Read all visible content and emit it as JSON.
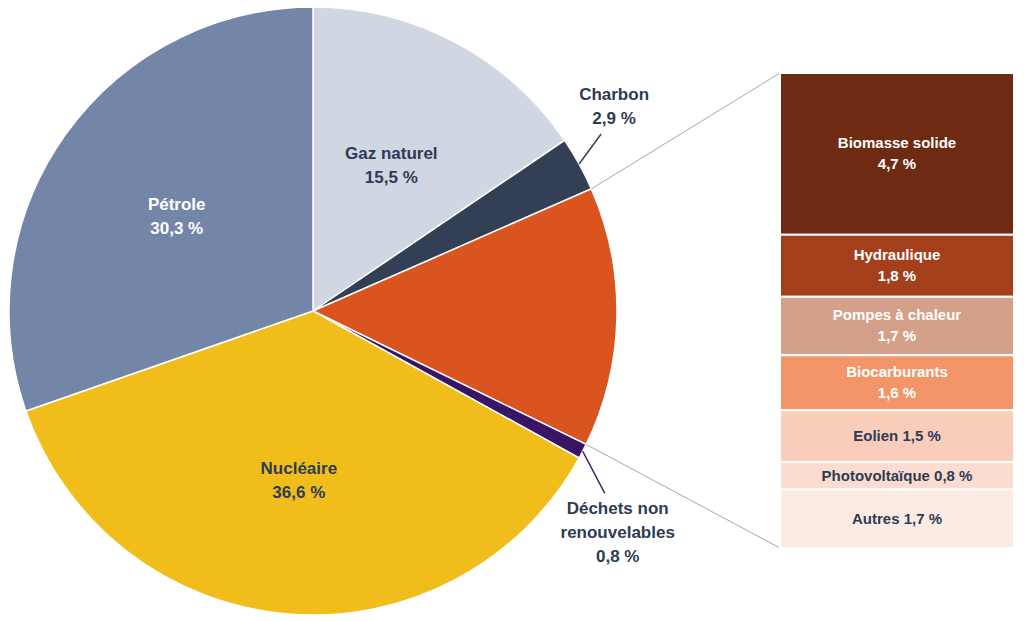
{
  "chart_data": [
    {
      "type": "pie",
      "categories": [
        "Gaz naturel",
        "Charbon",
        null,
        "Déchets non renouvelables",
        "Nucléaire",
        "Pétrole"
      ],
      "values": [
        15.5,
        2.9,
        13.8,
        0.8,
        36.6,
        30.3
      ],
      "value_labels": [
        "15,5 %",
        "2,9 %",
        null,
        "0,8 %",
        "36,6 %",
        "30,3 %"
      ],
      "colors": [
        "#D0D6E2",
        "#333F55",
        "#D9541E",
        "#3B1565",
        "#F1BD1A",
        "#7486A8"
      ],
      "data_labels": true
    },
    {
      "type": "bar",
      "stacked": true,
      "categories": [
        null
      ],
      "series": [
        {
          "name": "Biomasse solide",
          "color": "#6E2A12",
          "values": [
            4.7
          ],
          "value_labels": [
            "4,7 %"
          ]
        },
        {
          "name": "Hydraulique",
          "color": "#A33F1B",
          "values": [
            1.8
          ],
          "value_labels": [
            "1,8 %"
          ]
        },
        {
          "name": "Pompes à chaleur",
          "color": "#D4A08A",
          "values": [
            1.7
          ],
          "value_labels": [
            "1,7 %"
          ]
        },
        {
          "name": "Biocarburants",
          "color": "#F2966A",
          "values": [
            1.6
          ],
          "value_labels": [
            "1,6 %"
          ]
        },
        {
          "name": "Eolien",
          "color": "#F8CDB9",
          "values": [
            1.5
          ],
          "value_labels": [
            "1,5 %"
          ]
        },
        {
          "name": "Photovoltaïque",
          "color": "#FADDD0",
          "values": [
            0.8
          ],
          "value_labels": [
            "0,8 %"
          ]
        },
        {
          "name": "Autres",
          "color": "#FCEBE3",
          "values": [
            1.7
          ],
          "value_labels": [
            "1,7 %"
          ]
        }
      ],
      "ylim": [
        0,
        13.8
      ],
      "tick_labels": false,
      "data_labels": true
    }
  ]
}
